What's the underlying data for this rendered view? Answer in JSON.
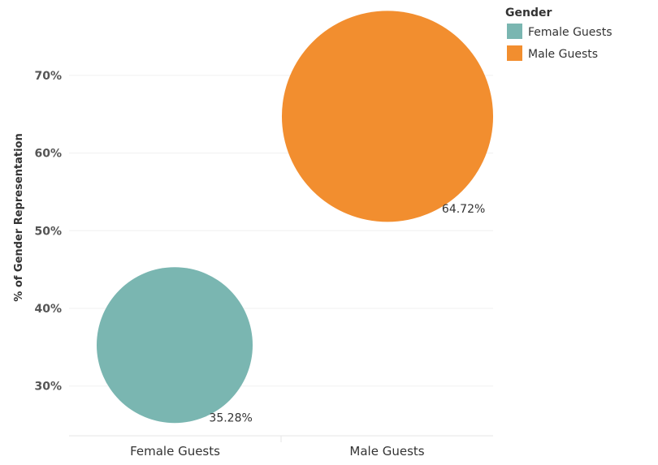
{
  "chart_data": {
    "type": "scatter",
    "title": "",
    "xlabel": "",
    "ylabel": "% of Gender Representation",
    "categories": [
      "Female Guests",
      "Male Guests"
    ],
    "values": [
      35.28,
      64.72
    ],
    "data_labels": [
      "35.28%",
      "64.72%"
    ],
    "ylim": [
      23.6,
      79.7
    ],
    "yticks": [
      30,
      40,
      50,
      60,
      70
    ],
    "ytick_labels": [
      "30%",
      "40%",
      "50%",
      "60%",
      "70%"
    ],
    "grid": true,
    "marker": "circle sized by value",
    "legend": {
      "title": "Gender",
      "placement": "top-right",
      "entries": [
        "Female Guests",
        "Male Guests"
      ]
    },
    "colors": [
      "#7ab6b1",
      "#f28e2f"
    ]
  }
}
